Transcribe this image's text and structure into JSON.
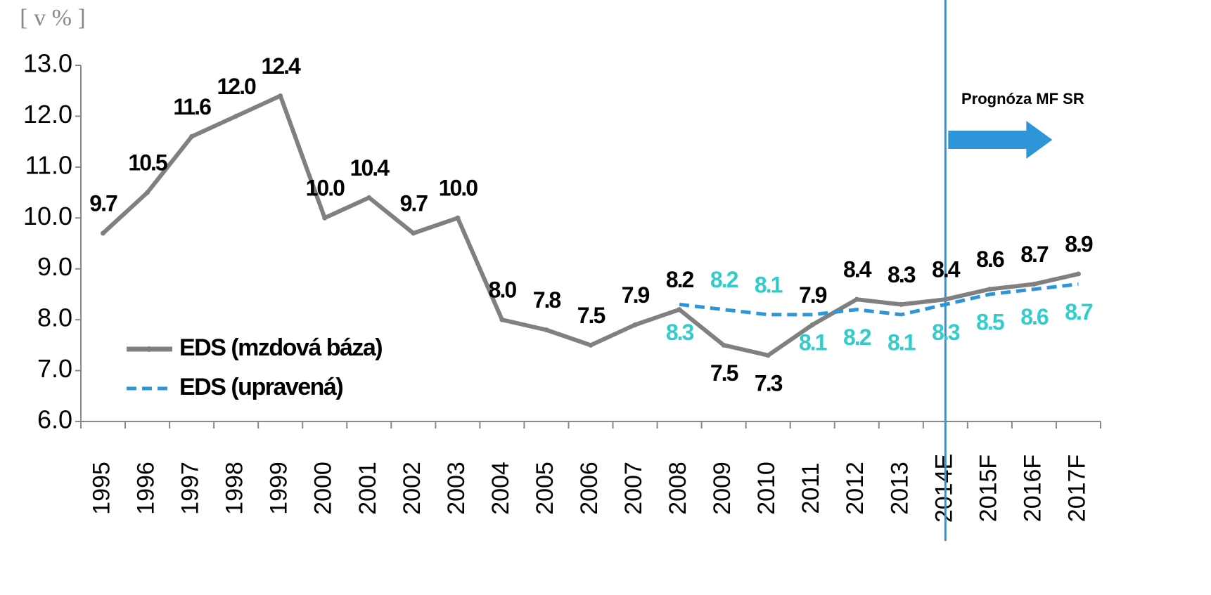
{
  "chart_data": {
    "type": "line",
    "y_label": "[ v % ]",
    "annotation": "Prognóza MF SR",
    "categories": [
      "1995",
      "1996",
      "1997",
      "1998",
      "1999",
      "2000",
      "2001",
      "2002",
      "2003",
      "2004",
      "2005",
      "2006",
      "2007",
      "2008",
      "2009",
      "2010",
      "2011",
      "2012",
      "2013",
      "2014E",
      "2015F",
      "2016F",
      "2017F"
    ],
    "series": [
      {
        "name": "EDS (mzdová báza)",
        "color": "#808080",
        "dash": false,
        "label_color": "#000000",
        "values": [
          9.7,
          10.5,
          11.6,
          12.0,
          12.4,
          10.0,
          10.4,
          9.7,
          10.0,
          8.0,
          7.8,
          7.5,
          7.9,
          8.2,
          7.5,
          7.3,
          7.9,
          8.4,
          8.3,
          8.4,
          8.6,
          8.7,
          8.9
        ],
        "value_labels": [
          "9.7",
          "10.5",
          "11.6",
          "12.0",
          "12.4",
          "10.0",
          "10.4",
          "9.7",
          "10.0",
          "8.0",
          "7.8",
          "7.5",
          "7.9",
          "8.2",
          "7.5",
          "7.3",
          "7.9",
          "8.4",
          "8.3",
          "8.4",
          "8.6",
          "8.7",
          "8.9"
        ]
      },
      {
        "name": "EDS (upravená)",
        "color": "#2e95d8",
        "dash": true,
        "label_color": "#33cccc",
        "values": [
          null,
          null,
          null,
          null,
          null,
          null,
          null,
          null,
          null,
          null,
          null,
          null,
          null,
          8.3,
          8.2,
          8.1,
          8.1,
          8.2,
          8.1,
          8.3,
          8.5,
          8.6,
          8.7
        ],
        "value_labels": [
          null,
          null,
          null,
          null,
          null,
          null,
          null,
          null,
          null,
          null,
          null,
          null,
          null,
          "8.3",
          "8.2",
          "8.1",
          "8.1",
          "8.2",
          "8.1",
          "8.3",
          "8.5",
          "8.6",
          "8.7"
        ]
      }
    ],
    "forecast_start": "2014E",
    "ylim": [
      6,
      13
    ],
    "yticks": [
      {
        "value": 6,
        "label": "6.0"
      },
      {
        "value": 7,
        "label": "7.0"
      },
      {
        "value": 8,
        "label": "8.0"
      },
      {
        "value": 9,
        "label": "9.0"
      },
      {
        "value": 10,
        "label": "10.0"
      },
      {
        "value": 11,
        "label": "11.0"
      },
      {
        "value": 12,
        "label": "12.0"
      },
      {
        "value": 13,
        "label": "13.0"
      }
    ],
    "grid": false,
    "legend": "lower left"
  }
}
